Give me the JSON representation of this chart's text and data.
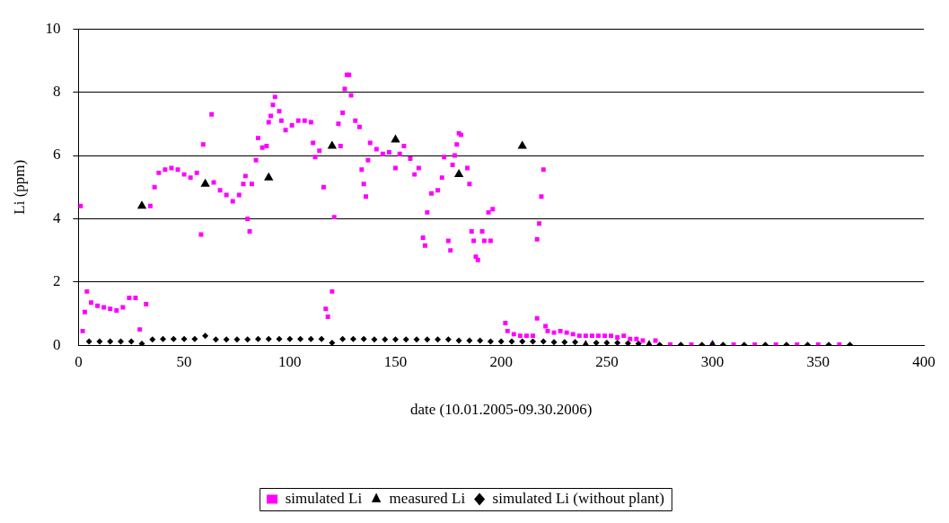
{
  "chart_data": {
    "type": "scatter",
    "xlabel": "date (10.01.2005-09.30.2006)",
    "ylabel": "Li (ppm)",
    "xlim": [
      0,
      400
    ],
    "xticks": [
      0,
      50,
      100,
      150,
      200,
      250,
      300,
      350,
      400
    ],
    "ylim": [
      0,
      10
    ],
    "yticks": [
      0,
      2,
      4,
      6,
      8,
      10
    ],
    "grid": "y",
    "legend": "bottom",
    "series": [
      {
        "name": "simulated Li",
        "color": "#ff00ff",
        "marker": "square",
        "x": [
          1,
          2,
          3,
          4,
          6,
          9,
          12,
          15,
          18,
          21,
          24,
          27,
          29,
          32,
          34,
          36,
          38,
          41,
          44,
          47,
          50,
          53,
          56,
          58,
          59,
          63,
          64,
          67,
          70,
          73,
          76,
          78,
          79,
          80,
          81,
          82,
          84,
          85,
          87,
          89,
          90,
          91,
          92,
          93,
          95,
          96,
          98,
          101,
          104,
          107,
          110,
          111,
          112,
          114,
          116,
          117,
          118,
          120,
          121,
          123,
          124,
          125,
          126,
          127,
          128,
          129,
          131,
          133,
          134,
          135,
          136,
          137,
          138,
          141,
          144,
          147,
          150,
          152,
          154,
          157,
          159,
          161,
          163,
          164,
          165,
          167,
          170,
          172,
          173,
          175,
          176,
          177,
          178,
          179,
          180,
          181,
          184,
          185,
          186,
          187,
          188,
          189,
          191,
          192,
          194,
          195,
          196,
          202,
          203,
          206,
          209,
          212,
          215,
          217,
          217,
          218,
          219,
          220,
          221,
          222,
          225,
          228,
          231,
          234,
          237,
          240,
          243,
          246,
          249,
          252,
          255,
          258,
          261,
          264,
          267,
          273,
          280,
          290,
          300,
          310,
          320,
          330,
          340,
          350,
          360
        ],
        "values": [
          4.4,
          0.45,
          1.05,
          1.7,
          1.35,
          1.25,
          1.2,
          1.15,
          1.1,
          1.2,
          1.5,
          1.5,
          0.5,
          1.3,
          4.4,
          5.0,
          5.45,
          5.55,
          5.6,
          5.55,
          5.4,
          5.3,
          5.45,
          3.5,
          6.35,
          7.3,
          5.15,
          4.9,
          4.75,
          4.55,
          4.75,
          5.1,
          5.35,
          4.0,
          3.6,
          5.1,
          5.85,
          6.55,
          6.25,
          6.3,
          7.05,
          7.25,
          7.6,
          7.85,
          7.4,
          7.1,
          6.8,
          6.95,
          7.1,
          7.1,
          7.05,
          6.4,
          5.95,
          6.15,
          5.0,
          1.15,
          0.9,
          1.7,
          4.05,
          7.0,
          6.3,
          7.35,
          8.1,
          8.55,
          8.55,
          7.9,
          7.1,
          6.9,
          5.55,
          5.1,
          4.7,
          5.85,
          6.4,
          6.2,
          6.05,
          6.1,
          5.6,
          6.05,
          6.3,
          5.9,
          5.4,
          5.6,
          3.4,
          3.15,
          4.2,
          4.8,
          4.9,
          5.3,
          5.95,
          3.3,
          3.0,
          5.7,
          6.0,
          6.35,
          6.7,
          6.65,
          5.6,
          5.1,
          3.6,
          3.3,
          2.8,
          2.7,
          3.6,
          3.3,
          4.2,
          3.3,
          4.3,
          0.7,
          0.45,
          0.35,
          0.3,
          0.3,
          0.3,
          0.85,
          3.35,
          3.85,
          4.7,
          5.55,
          0.6,
          0.45,
          0.4,
          0.45,
          0.4,
          0.35,
          0.3,
          0.3,
          0.3,
          0.3,
          0.3,
          0.3,
          0.25,
          0.3,
          0.2,
          0.2,
          0.15,
          0.15,
          0.02,
          0.02,
          0.02,
          0.02,
          0.02,
          0.02,
          0.02,
          0.02,
          0.02
        ]
      },
      {
        "name": "measured Li",
        "color": "#000000",
        "marker": "triangle",
        "x": [
          30,
          60,
          90,
          120,
          150,
          180,
          210,
          240,
          270,
          300
        ],
        "values": [
          4.4,
          5.1,
          5.3,
          6.3,
          6.5,
          5.4,
          6.3,
          0,
          0,
          0
        ]
      },
      {
        "name": "simulated Li (without plant)",
        "color": "#000000",
        "marker": "diamond",
        "x": [
          5,
          10,
          15,
          20,
          25,
          30,
          35,
          40,
          45,
          50,
          55,
          60,
          65,
          70,
          75,
          80,
          85,
          90,
          95,
          100,
          105,
          110,
          115,
          120,
          125,
          130,
          135,
          140,
          145,
          150,
          155,
          160,
          165,
          170,
          175,
          180,
          185,
          190,
          195,
          200,
          205,
          210,
          215,
          220,
          225,
          230,
          235,
          245,
          250,
          255,
          260,
          265,
          275,
          285,
          295,
          305,
          315,
          325,
          335,
          345,
          355,
          365
        ],
        "values": [
          0.12,
          0.12,
          0.12,
          0.12,
          0.12,
          0.05,
          0.18,
          0.2,
          0.2,
          0.2,
          0.2,
          0.3,
          0.18,
          0.18,
          0.18,
          0.18,
          0.2,
          0.2,
          0.2,
          0.2,
          0.2,
          0.2,
          0.2,
          0.08,
          0.2,
          0.2,
          0.2,
          0.18,
          0.18,
          0.18,
          0.18,
          0.18,
          0.18,
          0.18,
          0.18,
          0.15,
          0.15,
          0.15,
          0.12,
          0.12,
          0.12,
          0.12,
          0.12,
          0.12,
          0.1,
          0.1,
          0.1,
          0.08,
          0.08,
          0.08,
          0.06,
          0.05,
          0.01,
          0.01,
          0.01,
          0.01,
          0.01,
          0.01,
          0.01,
          0.01,
          0.01,
          0.01
        ]
      }
    ]
  }
}
